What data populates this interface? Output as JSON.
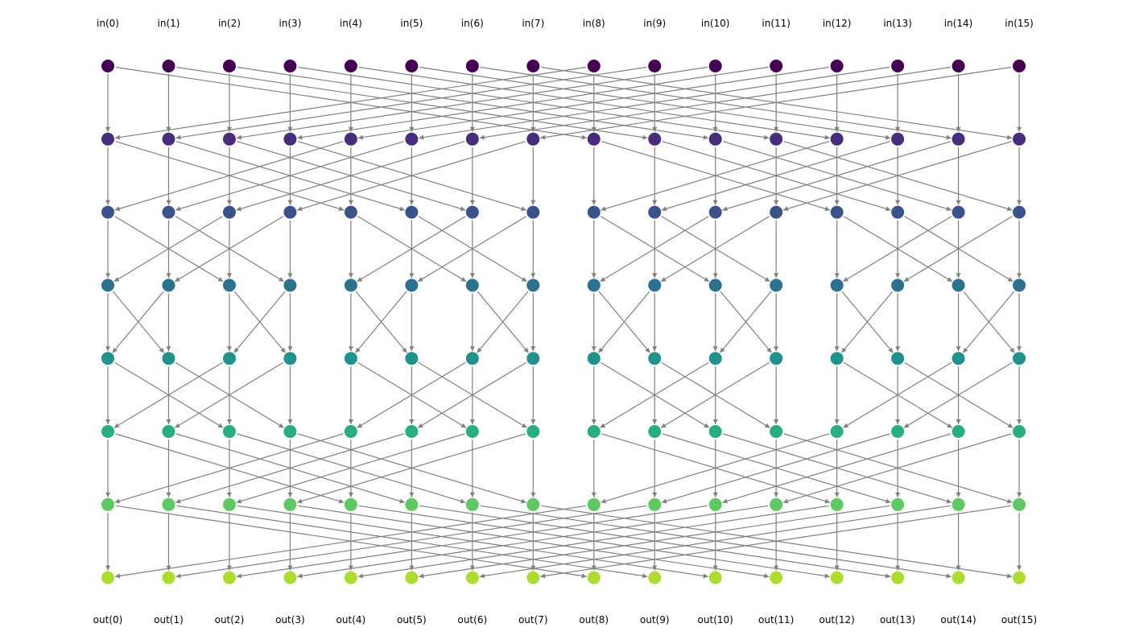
{
  "diagram": {
    "type": "butterfly-network",
    "n_lanes": 16,
    "n_layers": 8,
    "edge_color": "#808080",
    "layer_colors": [
      "#440154",
      "#472d7b",
      "#3b528b",
      "#2c728e",
      "#21918c",
      "#28ae80",
      "#5ec962",
      "#addc30"
    ],
    "input_labels": [
      "in(0)",
      "in(1)",
      "in(2)",
      "in(3)",
      "in(4)",
      "in(5)",
      "in(6)",
      "in(7)",
      "in(8)",
      "in(9)",
      "in(10)",
      "in(11)",
      "in(12)",
      "in(13)",
      "in(14)",
      "in(15)"
    ],
    "output_labels": [
      "out(0)",
      "out(1)",
      "out(2)",
      "out(3)",
      "out(4)",
      "out(5)",
      "out(6)",
      "out(7)",
      "out(8)",
      "out(9)",
      "out(10)",
      "out(11)",
      "out(12)",
      "out(13)",
      "out(14)",
      "out(15)"
    ],
    "stage_strides": [
      8,
      4,
      2,
      1,
      2,
      4,
      8
    ]
  }
}
